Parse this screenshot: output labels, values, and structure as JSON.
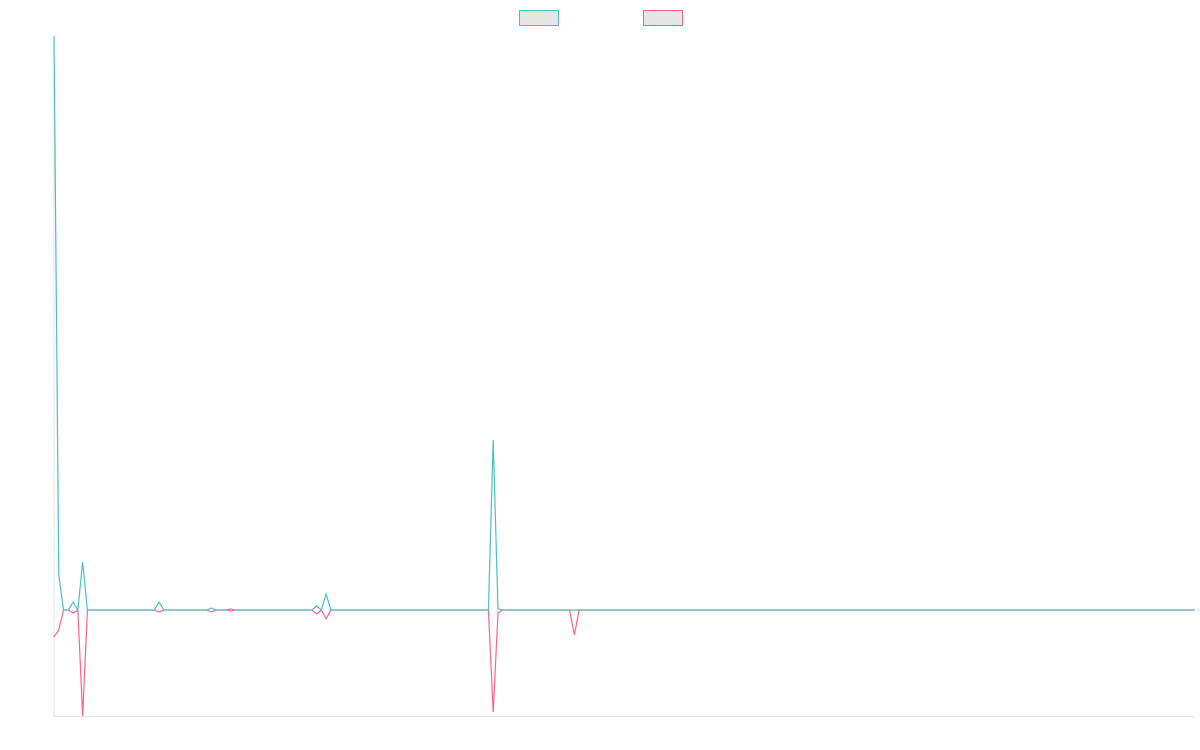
{
  "chart_data": {
    "type": "line",
    "legend": "top",
    "ylim": [
      -106,
      574
    ],
    "series": [
      {
        "color": "#4bc0c0",
        "values": [
          574,
          35,
          0,
          0,
          8,
          0,
          48,
          0,
          0,
          0,
          0,
          0,
          0,
          0,
          0,
          0,
          0,
          0,
          0,
          0,
          0,
          0,
          8,
          0,
          0,
          0,
          0,
          0,
          0,
          0,
          0,
          0,
          0,
          2,
          0,
          0,
          0,
          1,
          0,
          0,
          0,
          0,
          0,
          0,
          0,
          0,
          0,
          0,
          0,
          0,
          0,
          0,
          0,
          0,
          0,
          4,
          0,
          16,
          0,
          0,
          0,
          0,
          0,
          0,
          0,
          0,
          0,
          0,
          0,
          0,
          0,
          0,
          0,
          0,
          0,
          0,
          0,
          0,
          0,
          0,
          0,
          0,
          0,
          0,
          0,
          0,
          0,
          0,
          0,
          0,
          0,
          0,
          170,
          1,
          0,
          0,
          0,
          0,
          0,
          0,
          0,
          0,
          0,
          0,
          0,
          0,
          0,
          0,
          0,
          0,
          0,
          0,
          0,
          0,
          0,
          0,
          0,
          0,
          0,
          0,
          0,
          0,
          0,
          0,
          0,
          0,
          0,
          0,
          0,
          0,
          0,
          0,
          0,
          0,
          0,
          0,
          0,
          0,
          0,
          0,
          0,
          0,
          0,
          0,
          0,
          0,
          0,
          0,
          0,
          0,
          0,
          0,
          0,
          0,
          0,
          0,
          0,
          0,
          0,
          0,
          0,
          0,
          0,
          0,
          0,
          0,
          0,
          0,
          0,
          0,
          0,
          0,
          0,
          0,
          0,
          0,
          0,
          0,
          0,
          0,
          0,
          0,
          0,
          0,
          0,
          0,
          0,
          0,
          0,
          0,
          0,
          0,
          0,
          0,
          0,
          0,
          0,
          0,
          0,
          0,
          0,
          0,
          0,
          0,
          0,
          0,
          0,
          0,
          0,
          0,
          0,
          0,
          0,
          0,
          0,
          0,
          0,
          0,
          0,
          0,
          0,
          0,
          0,
          0,
          0,
          0,
          0,
          0,
          0,
          0,
          0,
          0,
          0,
          0,
          0,
          0,
          0,
          0,
          0,
          0
        ]
      },
      {
        "color": "#ff6384",
        "values": [
          -27,
          -20,
          0,
          0,
          -3,
          0,
          -106,
          0,
          0,
          0,
          0,
          0,
          0,
          0,
          0,
          0,
          0,
          0,
          0,
          0,
          0,
          0,
          -2,
          0,
          0,
          0,
          0,
          0,
          0,
          0,
          0,
          0,
          0,
          -2,
          0,
          0,
          0,
          -1,
          0,
          0,
          0,
          0,
          0,
          0,
          0,
          0,
          0,
          0,
          0,
          0,
          0,
          0,
          0,
          0,
          0,
          -4,
          0,
          -9,
          0,
          0,
          0,
          0,
          0,
          0,
          0,
          0,
          0,
          0,
          0,
          0,
          0,
          0,
          0,
          0,
          0,
          0,
          0,
          0,
          0,
          0,
          0,
          0,
          0,
          0,
          0,
          0,
          0,
          0,
          0,
          0,
          0,
          0,
          -102,
          -3,
          0,
          0,
          0,
          0,
          0,
          0,
          0,
          0,
          0,
          0,
          0,
          0,
          0,
          0,
          0,
          -25,
          0,
          0,
          0,
          0,
          0,
          0,
          0,
          0,
          0,
          0,
          0,
          0,
          0,
          0,
          0,
          0,
          0,
          0,
          0,
          0,
          0,
          0,
          0,
          0,
          0,
          0,
          0,
          0,
          0,
          0,
          0,
          0,
          0,
          0,
          0,
          0,
          0,
          0,
          0,
          0,
          0,
          0,
          0,
          0,
          0,
          0,
          0,
          0,
          0,
          0,
          0,
          0,
          0,
          0,
          0,
          0,
          0,
          0,
          0,
          0,
          0,
          0,
          0,
          0,
          0,
          0,
          0,
          0,
          0,
          0,
          0,
          0,
          0,
          0,
          0,
          0,
          0,
          0,
          0,
          0,
          0,
          0,
          0,
          0,
          0,
          0,
          0,
          0,
          0,
          0,
          0,
          0,
          0,
          0,
          0,
          0,
          0,
          0,
          0,
          0,
          0,
          0,
          0,
          0,
          0,
          0,
          0,
          0,
          0,
          0,
          0,
          0,
          0,
          0,
          0,
          0,
          0,
          0,
          0,
          0,
          0,
          0,
          0,
          0,
          0,
          0,
          0,
          0,
          0,
          0
        ]
      }
    ]
  }
}
